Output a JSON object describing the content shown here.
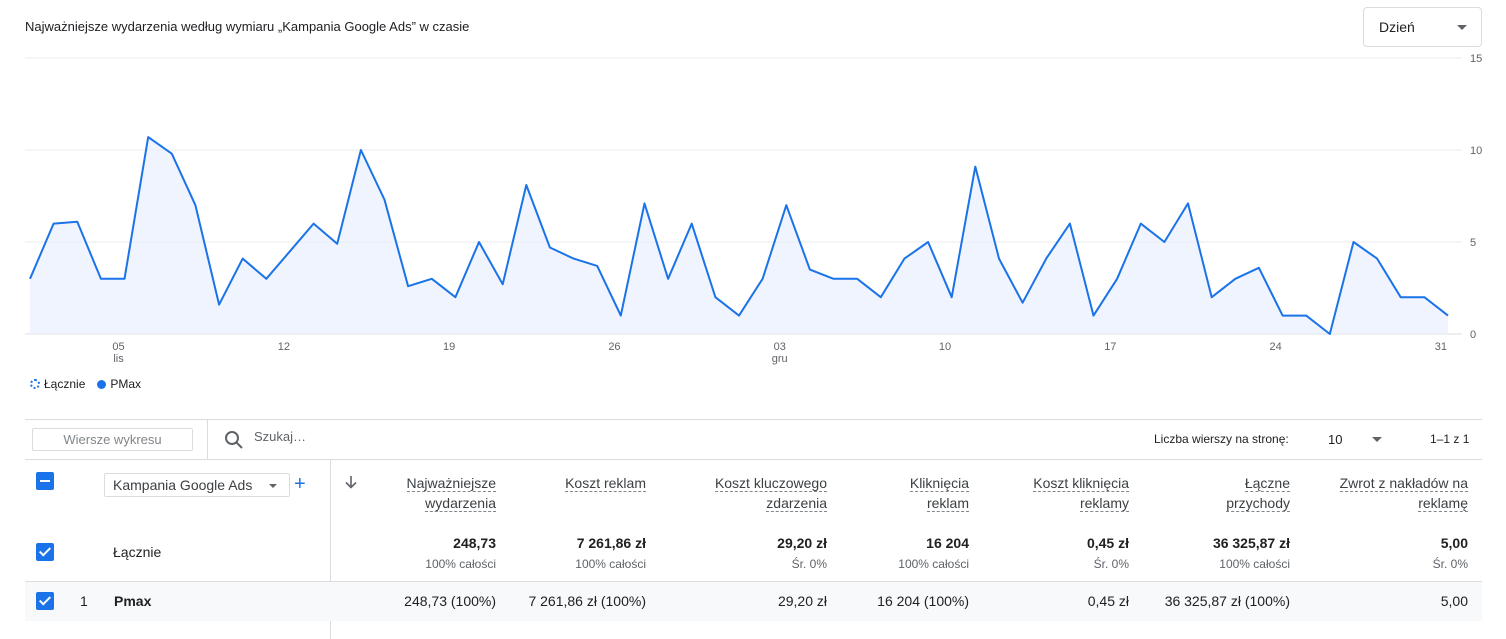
{
  "header": {
    "title": "Najważniejsze wydarzenia według wymiaru „Kampania Google Ads” w czasie",
    "period": "Dzień"
  },
  "legend": {
    "total": "Łącznie",
    "series": "PMax"
  },
  "chart_data": {
    "type": "area",
    "y_ticks": [
      "15",
      "10",
      "5",
      "0"
    ],
    "ylim": [
      0,
      15
    ],
    "x_ticks": [
      {
        "day": 5,
        "label": "05",
        "sub": "lis"
      },
      {
        "day": 12,
        "label": "12",
        "sub": ""
      },
      {
        "day": 19,
        "label": "19",
        "sub": ""
      },
      {
        "day": 26,
        "label": "26",
        "sub": ""
      },
      {
        "day": 33,
        "label": "03",
        "sub": "gru"
      },
      {
        "day": 40,
        "label": "10",
        "sub": ""
      },
      {
        "day": 47,
        "label": "17",
        "sub": ""
      },
      {
        "day": 54,
        "label": "24",
        "sub": ""
      },
      {
        "day": 61,
        "label": "31",
        "sub": ""
      }
    ],
    "x_range": [
      1.25,
      61.3
    ],
    "series": [
      {
        "name": "PMax",
        "color": "#1a73e8",
        "values": [
          3,
          6,
          6.1,
          3,
          3,
          10.7,
          9.8,
          7,
          1.6,
          4.1,
          3,
          4.5,
          6,
          4.9,
          10,
          7.3,
          2.6,
          3,
          2,
          5,
          2.7,
          8.1,
          4.7,
          4.1,
          3.7,
          1,
          7.1,
          3,
          6,
          2,
          1,
          3,
          7,
          3.5,
          3,
          3,
          2,
          4.1,
          5,
          2,
          9.1,
          4.1,
          1.7,
          4.1,
          6,
          1,
          3,
          6,
          5,
          7.1,
          2,
          3,
          3.6,
          1,
          1,
          0,
          5,
          4.1,
          2,
          2,
          1
        ]
      }
    ]
  },
  "toolbar": {
    "rows_chart": "Wiersze wykresu",
    "search_placeholder": "Szukaj…",
    "rows_per_page_label": "Liczba wierszy na stronę:",
    "rows_per_page": "10",
    "pagination": "1–1 z 1"
  },
  "table": {
    "dimension": "Kampania Google Ads",
    "columns": [
      {
        "l1": "Najważniejsze",
        "l2": "wydarzenia"
      },
      {
        "l1": "Koszt reklam",
        "l2": ""
      },
      {
        "l1": "Koszt kluczowego",
        "l2": "zdarzenia"
      },
      {
        "l1": "Kliknięcia",
        "l2": "reklam"
      },
      {
        "l1": "Koszt kliknięcia",
        "l2": "reklamy"
      },
      {
        "l1": "Łączne",
        "l2": "przychody"
      },
      {
        "l1": "Zwrot z nakładów na",
        "l2": "reklamę"
      }
    ],
    "totals": {
      "label": "Łącznie",
      "values": [
        "248,73",
        "7 261,86 zł",
        "29,20 zł",
        "16 204",
        "0,45 zł",
        "36 325,87 zł",
        "5,00"
      ],
      "subs": [
        "100% całości",
        "100% całości",
        "Śr. 0%",
        "100% całości",
        "Śr. 0%",
        "100% całości",
        "Śr. 0%"
      ]
    },
    "rows": [
      {
        "index": "1",
        "name": "Pmax",
        "values": [
          "248,73 (100%)",
          "7 261,86 zł (100%)",
          "29,20 zł",
          "16 204 (100%)",
          "0,45 zł",
          "36 325,87 zł (100%)",
          "5,00"
        ]
      }
    ]
  }
}
